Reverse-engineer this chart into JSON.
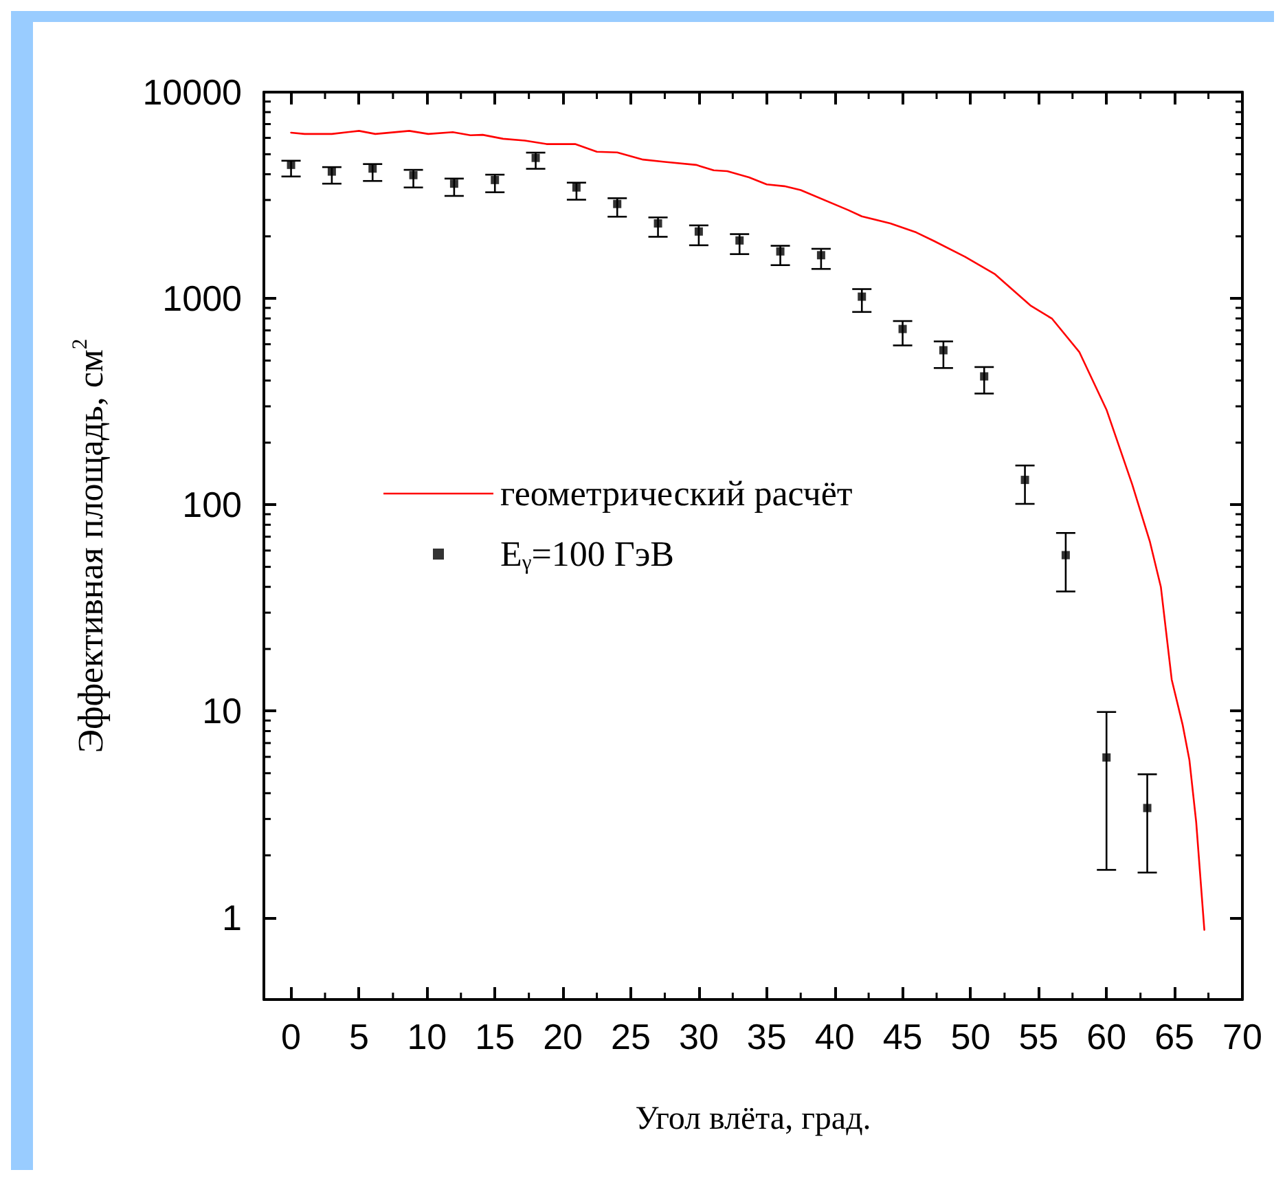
{
  "chart_data": {
    "type": "scatter",
    "xlabel": "Угол влёта, град.",
    "ylabel": "Эффективная площадь, см$^{2}$",
    "log": "y",
    "xlim": [
      -2,
      70
    ],
    "ylim": [
      0.4,
      10000
    ],
    "xticks": [
      0,
      5,
      10,
      15,
      20,
      25,
      30,
      35,
      40,
      45,
      50,
      55,
      60,
      65,
      70
    ],
    "yticks": [
      1,
      10,
      100,
      1000,
      10000
    ],
    "grid": false,
    "legend": "left",
    "marker": "square",
    "series": [
      {
        "name": "геометрический расчёт",
        "type": "line",
        "color": "#ff0000",
        "marker": "none",
        "line_style": "solid",
        "x": [
          0,
          1.0,
          3.0,
          5.0,
          6.2,
          8.7,
          10.1,
          11.9,
          13.2,
          14.1,
          15.6,
          17.2,
          18.8,
          20.9,
          22.5,
          24.0,
          25.9,
          27.5,
          29.8,
          31.1,
          32.1,
          33.7,
          35.0,
          36.3,
          37.5,
          41.0,
          42.0,
          44.1,
          46.0,
          47.3,
          49.6,
          51.8,
          54.4,
          56.0,
          58.0,
          60.0,
          61.9,
          63.2,
          64.0,
          64.8,
          65.6,
          66.1,
          66.6,
          67.2
        ],
        "values": [
          6360,
          6270,
          6270,
          6490,
          6270,
          6490,
          6270,
          6400,
          6180,
          6210,
          5940,
          5820,
          5600,
          5600,
          5140,
          5100,
          4710,
          4590,
          4440,
          4180,
          4140,
          3860,
          3570,
          3500,
          3350,
          2680,
          2500,
          2310,
          2090,
          1900,
          1590,
          1310,
          925,
          797,
          550,
          289,
          125,
          66,
          40,
          14.2,
          8.6,
          5.8,
          2.9,
          0.87
        ]
      },
      {
        "name": "E$_{γ}$=100 ГэВ",
        "color": "#000000",
        "x": [
          0,
          3,
          6,
          9,
          12,
          15,
          18,
          21,
          24,
          27,
          30,
          33,
          36,
          39,
          42,
          45,
          48,
          51,
          54,
          57,
          60,
          63
        ],
        "values": [
          4440,
          4120,
          4260,
          3960,
          3600,
          3750,
          4800,
          3450,
          2870,
          2310,
          2110,
          1910,
          1690,
          1620,
          1020,
          711,
          561,
          419,
          132,
          57,
          5.96,
          3.39
        ],
        "errors": [
          [
            3900,
            4650
          ],
          [
            3600,
            4330
          ],
          [
            3710,
            4480
          ],
          [
            3450,
            4200
          ],
          [
            3140,
            3810
          ],
          [
            3270,
            3980
          ],
          [
            4250,
            5090
          ],
          [
            3010,
            3640
          ],
          [
            2490,
            3060
          ],
          [
            1990,
            2470
          ],
          [
            1810,
            2260
          ],
          [
            1640,
            2050
          ],
          [
            1450,
            1800
          ],
          [
            1390,
            1740
          ],
          [
            860,
            1110
          ],
          [
            592,
            777
          ],
          [
            460,
            619
          ],
          [
            346,
            465
          ],
          [
            101,
            155
          ],
          [
            38,
            73
          ],
          [
            1.7,
            9.9
          ],
          [
            1.65,
            4.94
          ]
        ]
      }
    ]
  }
}
